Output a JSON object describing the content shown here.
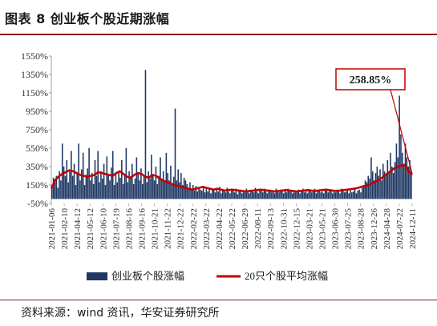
{
  "header": {
    "title": "图表 8 创业板个股近期涨幅"
  },
  "footer": {
    "source": "资料来源：wind 资讯，华安证券研究所"
  },
  "colors": {
    "bar": "#1f3864",
    "line": "#c00000",
    "title_rule": "#8b1a1a",
    "callout_border": "#c00000"
  },
  "callout": {
    "text": "258.85%"
  },
  "chart_data": {
    "type": "bar",
    "ylim": [
      -50,
      1550
    ],
    "y_ticks": [
      "1550%",
      "1350%",
      "1150%",
      "950%",
      "750%",
      "550%",
      "350%",
      "150%",
      "-50%"
    ],
    "y_tick_values": [
      1550,
      1350,
      1150,
      950,
      750,
      550,
      350,
      150,
      -50
    ],
    "x_ticks": [
      "2021-01-06",
      "2021-02-10",
      "2021-04-12",
      "2021-05-12",
      "2021-06-10",
      "2021-07-19",
      "2021-08-16",
      "2021-09-16",
      "2021-10-21",
      "2021-11-22",
      "2021-12-22",
      "2022-02-22",
      "2022-03-22",
      "2022-04-22",
      "2022-05-22",
      "2022-06-29",
      "2022-08-11",
      "2022-09-13",
      "2022-10-31",
      "2022-12-15",
      "2023-03-21",
      "2023-05-21",
      "2023-06-30",
      "2023-07-25",
      "2023-08-28",
      "2023-12-26",
      "2024-04-28",
      "2024-07-22",
      "2024-12-11"
    ],
    "legend": [
      "创业板个股涨幅",
      "20只个股平均涨幅"
    ],
    "series": [
      {
        "name": "创业板个股涨幅",
        "values": [
          150,
          230,
          180,
          250,
          120,
          300,
          200,
          600,
          350,
          250,
          420,
          180,
          300,
          520,
          250,
          380,
          150,
          280,
          600,
          200,
          320,
          500,
          150,
          260,
          330,
          550,
          200,
          280,
          160,
          420,
          250,
          520,
          180,
          300,
          220,
          380,
          150,
          460,
          260,
          200,
          340,
          520,
          150,
          280,
          180,
          300,
          230,
          420,
          160,
          260,
          550,
          180,
          300,
          240,
          380,
          160,
          220,
          450,
          280,
          200,
          330,
          160,
          250,
          1400,
          180,
          300,
          220,
          480,
          260,
          200,
          350,
          160,
          250,
          450,
          220,
          300,
          180,
          500,
          280,
          200,
          360,
          150,
          240,
          980,
          200,
          320,
          180,
          280,
          150,
          230,
          200,
          160,
          120,
          180,
          100,
          150,
          90,
          140,
          80,
          120,
          100,
          90,
          130,
          70,
          110,
          80,
          120,
          60,
          100,
          90,
          70,
          110,
          80,
          130,
          60,
          90,
          100,
          70,
          120,
          80,
          60,
          100,
          90,
          70,
          110,
          50,
          80,
          100,
          60,
          90,
          70,
          110,
          80,
          60,
          100,
          90,
          70,
          120,
          80,
          60,
          100,
          90,
          70,
          110,
          80,
          60,
          90,
          100,
          70,
          80,
          60,
          110,
          90,
          70,
          100,
          80,
          60,
          90,
          70,
          110,
          80,
          100,
          60,
          90,
          70,
          80,
          100,
          60,
          90,
          110,
          70,
          80,
          60,
          100,
          90,
          70,
          80,
          110,
          60,
          90,
          100,
          70,
          80,
          60,
          90,
          110,
          70,
          100,
          80,
          60,
          90,
          70,
          100,
          80,
          60,
          110,
          90,
          70,
          80,
          100,
          60,
          90,
          70,
          80,
          110,
          60,
          90,
          100,
          70,
          120,
          150,
          200,
          180,
          250,
          220,
          450,
          300,
          200,
          280,
          350,
          250,
          320,
          200,
          380,
          300,
          260,
          420,
          300,
          500,
          350,
          280,
          400,
          600,
          450,
          1120,
          700,
          500,
          380,
          600,
          450,
          350,
          420,
          300
        ],
        "bar_indices_note": ""
      },
      {
        "name": "20只个股平均涨幅",
        "values": [
          110,
          200,
          240,
          270,
          290,
          310,
          300,
          280,
          260,
          250,
          240,
          250,
          260,
          290,
          280,
          270,
          260,
          250,
          280,
          300,
          270,
          240,
          230,
          260,
          280,
          270,
          240,
          230,
          260,
          250,
          220,
          200,
          180,
          170,
          150,
          140,
          130,
          120,
          110,
          100,
          110,
          120,
          130,
          120,
          110,
          100,
          110,
          100,
          90,
          95,
          100,
          95,
          90,
          85,
          80,
          85,
          90,
          95,
          100,
          95,
          90,
          85,
          80,
          85,
          90,
          95,
          90,
          85,
          80,
          85,
          90,
          95,
          90,
          85,
          90,
          95,
          100,
          95,
          90,
          85,
          90,
          95,
          100,
          105,
          110,
          120,
          130,
          140,
          150,
          170,
          190,
          210,
          240,
          270,
          300,
          330,
          350,
          360,
          370,
          300,
          258.85
        ]
      }
    ]
  }
}
